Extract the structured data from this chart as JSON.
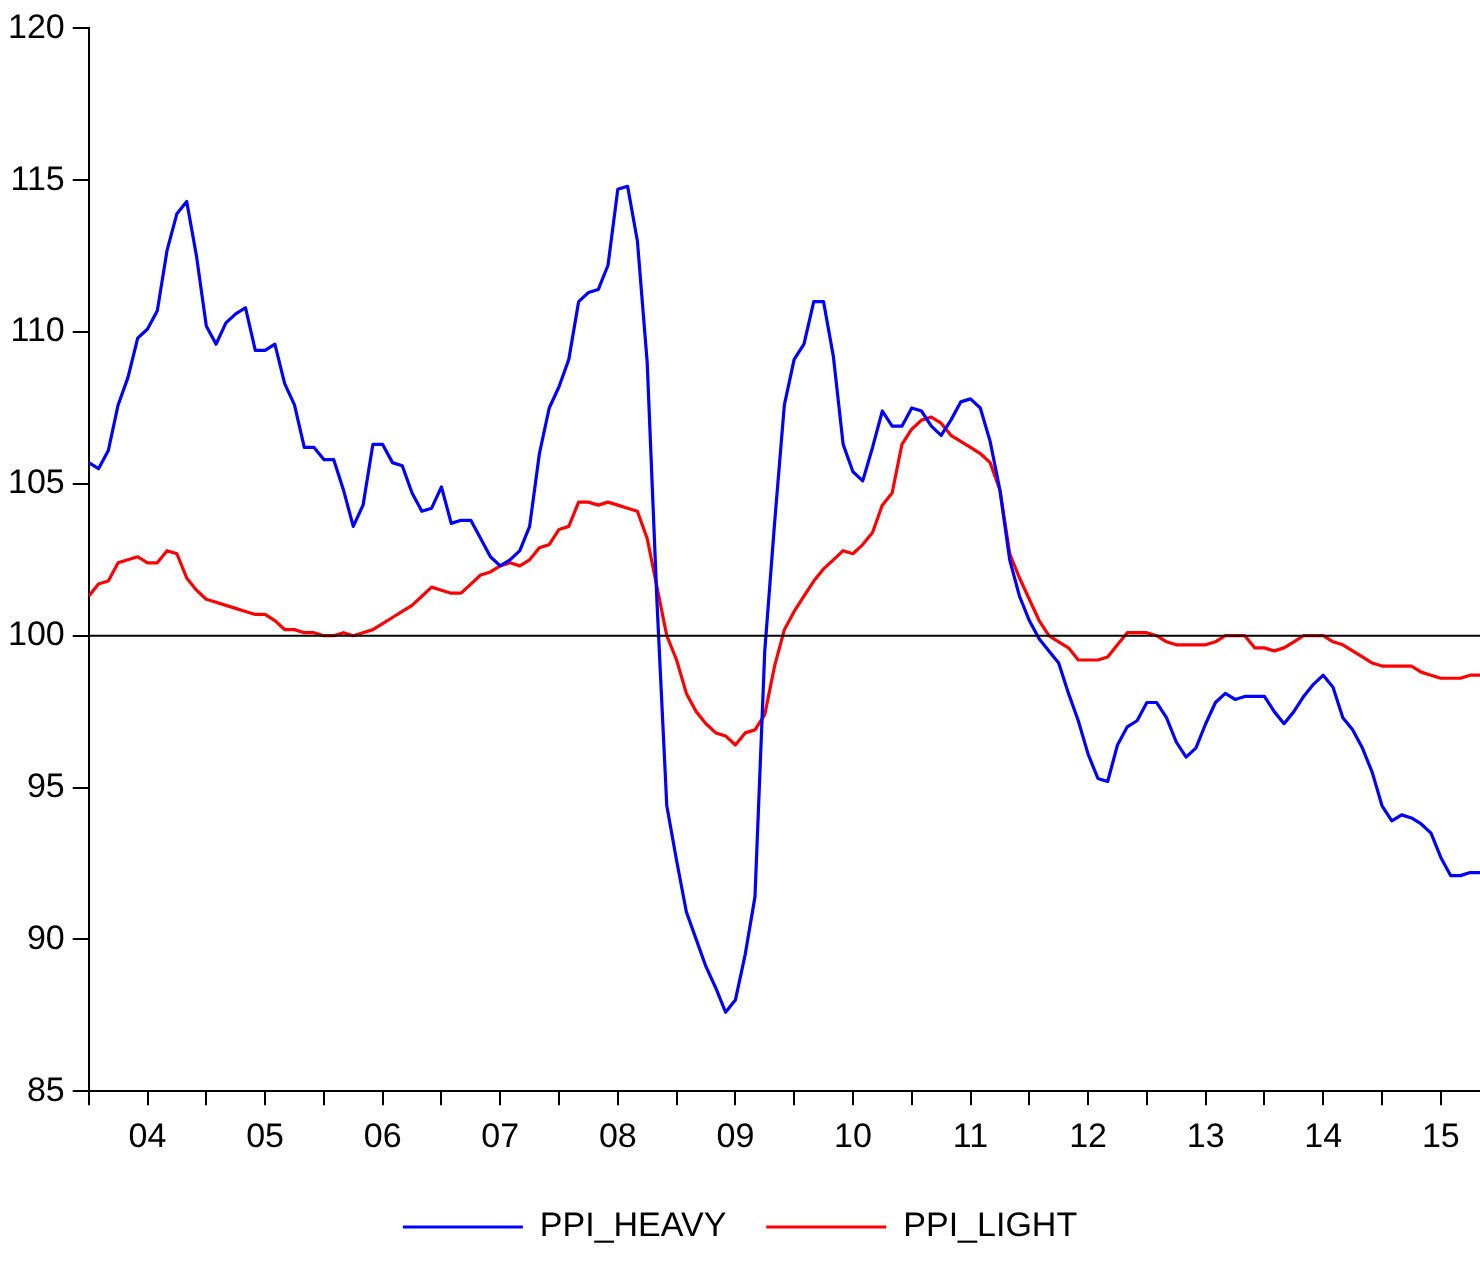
{
  "chart_data": {
    "type": "line",
    "x": [
      "2004-01",
      "2004-02",
      "2004-03",
      "2004-04",
      "2004-05",
      "2004-06",
      "2004-07",
      "2004-08",
      "2004-09",
      "2004-10",
      "2004-11",
      "2004-12",
      "2005-01",
      "2005-02",
      "2005-03",
      "2005-04",
      "2005-05",
      "2005-06",
      "2005-07",
      "2005-08",
      "2005-09",
      "2005-10",
      "2005-11",
      "2005-12",
      "2006-01",
      "2006-02",
      "2006-03",
      "2006-04",
      "2006-05",
      "2006-06",
      "2006-07",
      "2006-08",
      "2006-09",
      "2006-10",
      "2006-11",
      "2006-12",
      "2007-01",
      "2007-02",
      "2007-03",
      "2007-04",
      "2007-05",
      "2007-06",
      "2007-07",
      "2007-08",
      "2007-09",
      "2007-10",
      "2007-11",
      "2007-12",
      "2008-01",
      "2008-02",
      "2008-03",
      "2008-04",
      "2008-05",
      "2008-06",
      "2008-07",
      "2008-08",
      "2008-09",
      "2008-10",
      "2008-11",
      "2008-12",
      "2009-01",
      "2009-02",
      "2009-03",
      "2009-04",
      "2009-05",
      "2009-06",
      "2009-07",
      "2009-08",
      "2009-09",
      "2009-10",
      "2009-11",
      "2009-12",
      "2010-01",
      "2010-02",
      "2010-03",
      "2010-04",
      "2010-05",
      "2010-06",
      "2010-07",
      "2010-08",
      "2010-09",
      "2010-10",
      "2010-11",
      "2010-12",
      "2011-01",
      "2011-02",
      "2011-03",
      "2011-04",
      "2011-05",
      "2011-06",
      "2011-07",
      "2011-08",
      "2011-09",
      "2011-10",
      "2011-11",
      "2011-12",
      "2012-01",
      "2012-02",
      "2012-03",
      "2012-04",
      "2012-05",
      "2012-06",
      "2012-07",
      "2012-08",
      "2012-09",
      "2012-10",
      "2012-11",
      "2012-12",
      "2013-01",
      "2013-02",
      "2013-03",
      "2013-04",
      "2013-05",
      "2013-06",
      "2013-07",
      "2013-08",
      "2013-09",
      "2013-10",
      "2013-11",
      "2013-12",
      "2014-01",
      "2014-02",
      "2014-03",
      "2014-04",
      "2014-05",
      "2014-06",
      "2014-07",
      "2014-08",
      "2014-09",
      "2014-10",
      "2014-11",
      "2014-12",
      "2015-01",
      "2015-02",
      "2015-03",
      "2015-04",
      "2015-05",
      "2015-06",
      "2015-07",
      "2015-08",
      "2015-09",
      "2015-10",
      "2015-11"
    ],
    "series": [
      {
        "name": "PPI_HEAVY",
        "color": "#0000ff",
        "values": [
          105.7,
          105.5,
          106.1,
          107.6,
          108.5,
          109.8,
          110.1,
          110.7,
          112.7,
          113.9,
          114.3,
          112.5,
          110.2,
          109.6,
          110.3,
          110.6,
          110.8,
          109.4,
          109.4,
          109.6,
          108.3,
          107.6,
          106.2,
          106.2,
          105.8,
          105.8,
          104.8,
          103.6,
          104.3,
          106.3,
          106.3,
          105.7,
          105.6,
          104.7,
          104.1,
          104.2,
          104.9,
          103.7,
          103.8,
          103.8,
          103.2,
          102.6,
          102.3,
          102.5,
          102.8,
          103.6,
          106.0,
          107.5,
          108.2,
          109.1,
          111.0,
          111.3,
          111.4,
          112.2,
          114.7,
          114.8,
          113.0,
          109.0,
          101.1,
          94.4,
          92.6,
          90.9,
          90.0,
          89.1,
          88.4,
          87.6,
          88.0,
          89.5,
          91.4,
          99.5,
          103.7,
          107.6,
          109.1,
          109.6,
          111.0,
          111.0,
          109.2,
          106.3,
          105.4,
          105.1,
          106.2,
          107.4,
          106.9,
          106.9,
          107.5,
          107.4,
          106.9,
          106.6,
          107.1,
          107.7,
          107.8,
          107.5,
          106.4,
          104.8,
          102.5,
          101.3,
          100.5,
          99.9,
          99.5,
          99.1,
          98.1,
          97.2,
          96.1,
          95.3,
          95.2,
          96.4,
          97.0,
          97.2,
          97.8,
          97.8,
          97.3,
          96.5,
          96.0,
          96.3,
          97.1,
          97.8,
          98.1,
          97.9,
          98.0,
          98.0,
          98.0,
          97.5,
          97.1,
          97.5,
          98.0,
          98.4,
          98.7,
          98.3,
          97.3,
          96.9,
          96.3,
          95.5,
          94.4,
          93.9,
          94.1,
          94.0,
          93.8,
          93.5,
          92.7,
          92.1,
          92.1,
          92.2,
          92.2
        ]
      },
      {
        "name": "PPI_LIGHT",
        "color": "#ff0000",
        "values": [
          101.3,
          101.7,
          101.8,
          102.4,
          102.5,
          102.6,
          102.4,
          102.4,
          102.8,
          102.7,
          101.9,
          101.5,
          101.2,
          101.1,
          101.0,
          100.9,
          100.8,
          100.7,
          100.7,
          100.5,
          100.2,
          100.2,
          100.1,
          100.1,
          100.0,
          100.0,
          100.1,
          100.0,
          100.1,
          100.2,
          100.4,
          100.6,
          100.8,
          101.0,
          101.3,
          101.6,
          101.5,
          101.4,
          101.4,
          101.7,
          102.0,
          102.1,
          102.3,
          102.4,
          102.3,
          102.5,
          102.9,
          103.0,
          103.5,
          103.6,
          104.4,
          104.4,
          104.3,
          104.4,
          104.3,
          104.2,
          104.1,
          103.2,
          101.6,
          100.0,
          99.2,
          98.1,
          97.5,
          97.1,
          96.8,
          96.7,
          96.4,
          96.8,
          96.9,
          97.4,
          99.0,
          100.2,
          100.8,
          101.3,
          101.8,
          102.2,
          102.5,
          102.8,
          102.7,
          103.0,
          103.4,
          104.3,
          104.7,
          106.3,
          106.8,
          107.1,
          107.2,
          107.0,
          106.6,
          106.4,
          106.2,
          106.0,
          105.7,
          104.8,
          102.7,
          101.9,
          101.2,
          100.5,
          100.0,
          99.8,
          99.6,
          99.2,
          99.2,
          99.2,
          99.3,
          99.7,
          100.1,
          100.1,
          100.1,
          100.0,
          99.8,
          99.7,
          99.7,
          99.7,
          99.7,
          99.8,
          100.0,
          100.0,
          100.0,
          99.6,
          99.6,
          99.5,
          99.6,
          99.8,
          100.0,
          100.0,
          100.0,
          99.8,
          99.7,
          99.5,
          99.3,
          99.1,
          99.0,
          99.0,
          99.0,
          99.0,
          98.8,
          98.7,
          98.6,
          98.6,
          98.6,
          98.7,
          98.7
        ]
      }
    ],
    "xlim": [
      "2004-01",
      "2015-11"
    ],
    "xticks": [
      {
        "value": "2004-01",
        "label": null
      },
      {
        "value": "2004-07",
        "label": "04"
      },
      {
        "value": "2005-01",
        "label": null
      },
      {
        "value": "2005-07",
        "label": "05"
      },
      {
        "value": "2006-01",
        "label": null
      },
      {
        "value": "2006-07",
        "label": "06"
      },
      {
        "value": "2007-01",
        "label": null
      },
      {
        "value": "2007-07",
        "label": "07"
      },
      {
        "value": "2008-01",
        "label": null
      },
      {
        "value": "2008-07",
        "label": "08"
      },
      {
        "value": "2009-01",
        "label": null
      },
      {
        "value": "2009-07",
        "label": "09"
      },
      {
        "value": "2010-01",
        "label": null
      },
      {
        "value": "2010-07",
        "label": "10"
      },
      {
        "value": "2011-01",
        "label": null
      },
      {
        "value": "2011-07",
        "label": "11"
      },
      {
        "value": "2012-01",
        "label": null
      },
      {
        "value": "2012-07",
        "label": "12"
      },
      {
        "value": "2013-01",
        "label": null
      },
      {
        "value": "2013-07",
        "label": "13"
      },
      {
        "value": "2014-01",
        "label": null
      },
      {
        "value": "2014-07",
        "label": "14"
      },
      {
        "value": "2015-01",
        "label": null
      },
      {
        "value": "2015-07",
        "label": "15"
      }
    ],
    "ylim": [
      85,
      120
    ],
    "yticks": [
      85,
      90,
      95,
      100,
      105,
      110,
      115,
      120
    ],
    "ref_lines": [
      {
        "axis": "y",
        "value": 100,
        "color": "#000000"
      }
    ],
    "grid": false,
    "legend": "bottom",
    "marker": "none",
    "line_style": "solid"
  }
}
